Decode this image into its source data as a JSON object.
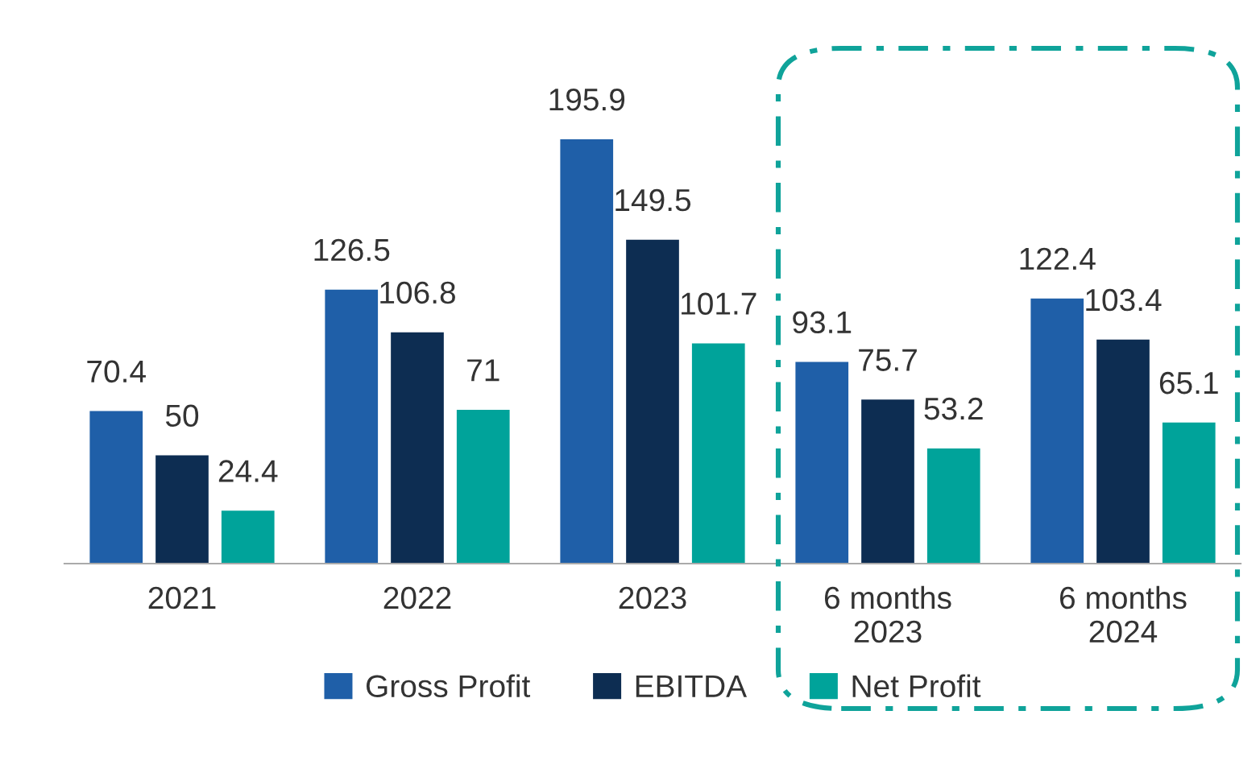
{
  "chart_data": {
    "type": "bar",
    "categories": [
      "2021",
      "2022",
      "2023",
      "6 months\n2023",
      "6 months\n2024"
    ],
    "series": [
      {
        "name": "Gross Profit",
        "color": "#1f5fa8",
        "values": [
          70.4,
          126.5,
          195.9,
          93.1,
          122.4
        ]
      },
      {
        "name": "EBITDA",
        "color": "#0d2d52",
        "values": [
          50,
          106.8,
          149.5,
          75.7,
          103.4
        ]
      },
      {
        "name": "Net Profit",
        "color": "#00a39a",
        "values": [
          24.4,
          71,
          101.7,
          53.2,
          65.1
        ]
      }
    ],
    "data_labels": true,
    "grid": false,
    "legend": "bottom"
  }
}
